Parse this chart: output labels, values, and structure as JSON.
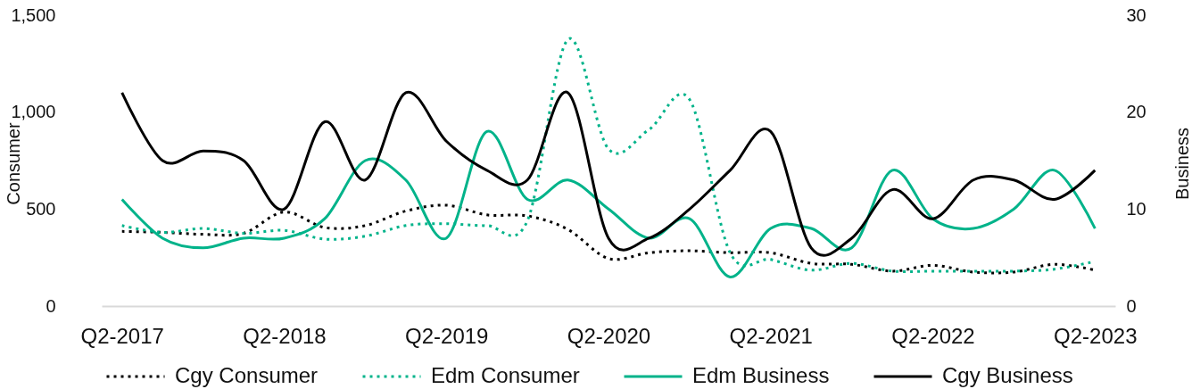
{
  "chart_data": {
    "type": "line",
    "categories": [
      "Q2-2017",
      null,
      null,
      null,
      "Q2-2018",
      null,
      null,
      null,
      "Q2-2019",
      null,
      null,
      null,
      "Q2-2020",
      null,
      null,
      null,
      "Q2-2021",
      null,
      null,
      null,
      "Q2-2022",
      null,
      null,
      null,
      "Q2-2023"
    ],
    "series": [
      {
        "name": "Cgy Consumer",
        "color": "#000000",
        "line_style": "dotted",
        "axis": "y",
        "values": [
          385,
          380,
          370,
          375,
          485,
          405,
          415,
          490,
          520,
          470,
          465,
          395,
          245,
          275,
          285,
          275,
          275,
          220,
          215,
          180,
          210,
          175,
          175,
          215,
          185
        ]
      },
      {
        "name": "Edm Consumer",
        "color": "#00b38a",
        "line_style": "dotted",
        "axis": "y",
        "values": [
          415,
          380,
          400,
          375,
          390,
          345,
          360,
          415,
          425,
          415,
          440,
          1375,
          810,
          910,
          1065,
          275,
          240,
          185,
          220,
          180,
          180,
          180,
          180,
          190,
          230
        ]
      },
      {
        "name": "Edm Business",
        "color": "#00b38a",
        "line_style": "solid",
        "axis": "y2",
        "values": [
          11,
          7,
          6,
          7,
          7,
          9,
          15,
          13,
          7,
          18,
          11,
          13,
          10,
          7,
          9,
          3,
          8,
          8,
          6,
          14,
          9,
          8,
          10,
          14,
          8
        ]
      },
      {
        "name": "Cgy Business",
        "color": "#000000",
        "line_style": "solid",
        "axis": "y2",
        "values": [
          22,
          15,
          16,
          15,
          10,
          19,
          13,
          22,
          17,
          14,
          13,
          22,
          7,
          7,
          10,
          14,
          18,
          6,
          7,
          12,
          9,
          13,
          13,
          11,
          14
        ]
      }
    ],
    "ylabel": "Consumer",
    "y2label": "Business",
    "ylim": [
      0,
      1500
    ],
    "yticks": [
      0,
      500,
      {
        "value": 1000,
        "label": "1,000"
      },
      {
        "value": 1500,
        "label": "1,500"
      }
    ],
    "y2lim": [
      0,
      30
    ],
    "y2ticks": [
      0,
      10,
      20,
      30
    ],
    "legend": "bottom"
  }
}
